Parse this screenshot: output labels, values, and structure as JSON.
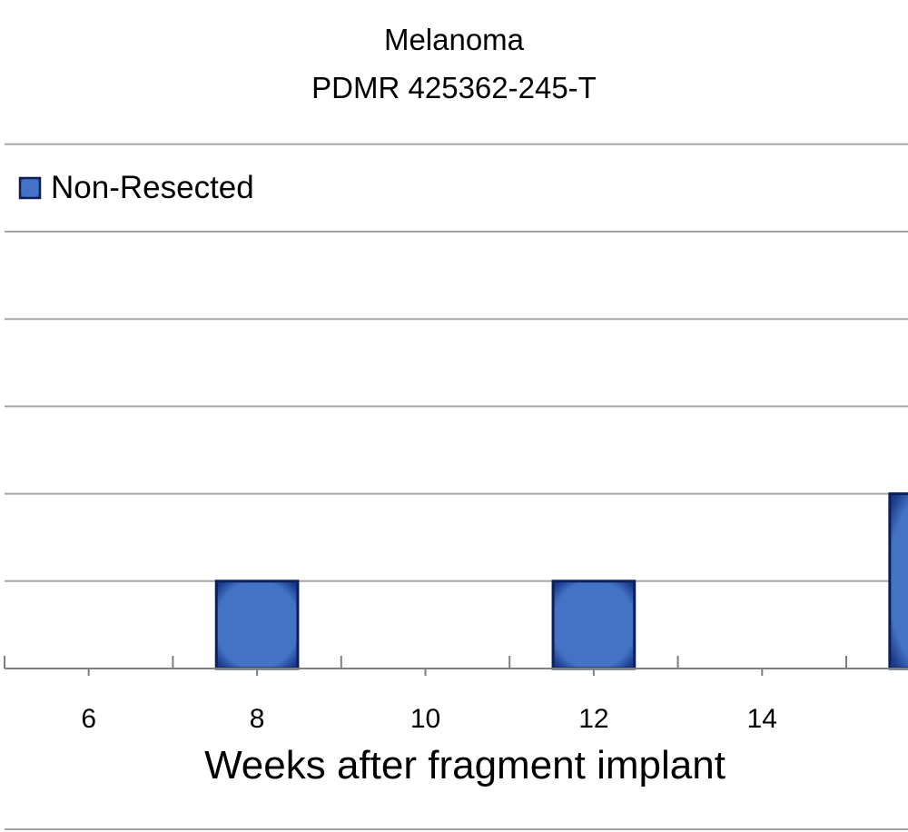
{
  "chart_data": {
    "type": "bar",
    "title_line1": "Melanoma",
    "title_line2": "PDMR 425362-245-T",
    "xlabel": "Weeks after fragment implant",
    "ylabel": "",
    "x_ticks": [
      6,
      8,
      10,
      12,
      14
    ],
    "x_range": [
      5,
      15.7
    ],
    "ylim": [
      0,
      6
    ],
    "grid": true,
    "legend_position": "top-left",
    "series": [
      {
        "name": "Non-Resected",
        "color": "#4472c4",
        "edge_color": "#0b1f5c",
        "points": [
          {
            "x": 8,
            "y": 1
          },
          {
            "x": 12,
            "y": 1
          },
          {
            "x": 16,
            "y": 2
          }
        ]
      }
    ]
  }
}
